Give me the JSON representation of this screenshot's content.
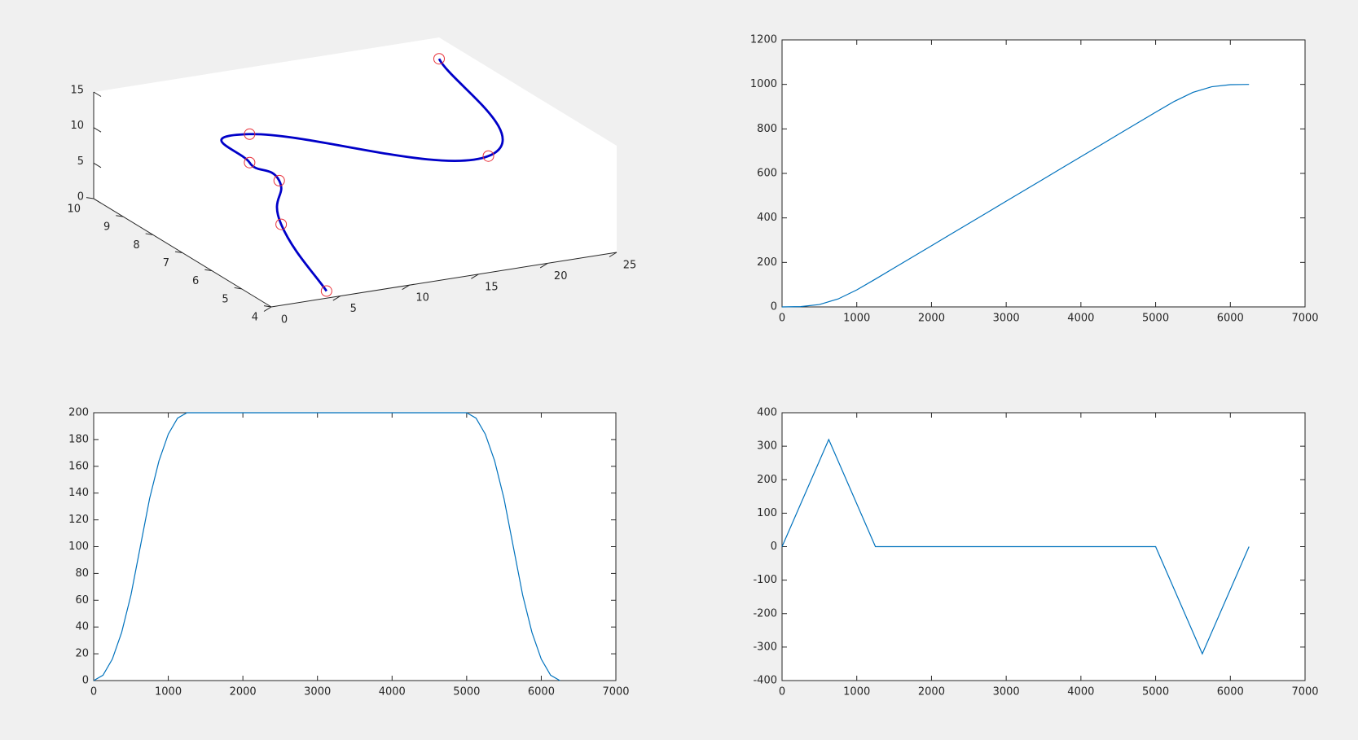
{
  "chart_data": [
    {
      "type": "line3d",
      "x": [
        4,
        5,
        7,
        7,
        7,
        20,
        25
      ],
      "y": [
        4,
        6,
        7,
        8,
        8,
        6,
        10
      ],
      "z": [
        1,
        5,
        8,
        8,
        12,
        10,
        12
      ],
      "line_color": "#0000c8",
      "marker_color": "#e8303a",
      "xlim": [
        0,
        25
      ],
      "ylim": [
        4,
        10
      ],
      "zlim": [
        0,
        15
      ],
      "xticks": [
        0,
        5,
        10,
        15,
        20,
        25
      ],
      "yticks": [
        4,
        5,
        6,
        7,
        8,
        9,
        10
      ],
      "zticks": [
        0,
        5,
        10,
        15
      ]
    },
    {
      "type": "line",
      "x": [
        0,
        250,
        500,
        750,
        1000,
        1250,
        1500,
        1750,
        2000,
        2250,
        2500,
        2750,
        3000,
        3250,
        3500,
        3750,
        4000,
        4250,
        4500,
        4750,
        5000,
        5250,
        5500,
        5750,
        6000,
        6250
      ],
      "values": [
        0,
        1.33,
        10.67,
        35.67,
        76.33,
        125,
        175,
        225,
        275,
        325,
        375,
        425,
        475,
        525,
        575,
        625,
        675,
        725,
        775,
        825,
        875,
        923.67,
        964.33,
        989.33,
        998.67,
        1000
      ],
      "color": "#0072bd",
      "xlim": [
        0,
        7000
      ],
      "ylim": [
        0,
        1200
      ],
      "xticks": [
        0,
        1000,
        2000,
        3000,
        4000,
        5000,
        6000,
        7000
      ],
      "yticks": [
        0,
        200,
        400,
        600,
        800,
        1000,
        1200
      ]
    },
    {
      "type": "line",
      "x": [
        0,
        125,
        250,
        375,
        500,
        625,
        750,
        875,
        1000,
        1125,
        1250,
        5000,
        5125,
        5250,
        5375,
        5500,
        5625,
        5750,
        5875,
        6000,
        6125,
        6250
      ],
      "values": [
        0,
        4,
        16,
        36,
        64,
        100,
        136,
        164,
        184,
        196,
        200,
        200,
        196,
        184,
        164,
        136,
        100,
        64,
        36,
        16,
        4,
        0
      ],
      "color": "#0072bd",
      "xlim": [
        0,
        7000
      ],
      "ylim": [
        0,
        200
      ],
      "xticks": [
        0,
        1000,
        2000,
        3000,
        4000,
        5000,
        6000,
        7000
      ],
      "yticks": [
        0,
        20,
        40,
        60,
        80,
        100,
        120,
        140,
        160,
        180,
        200
      ]
    },
    {
      "type": "line",
      "x": [
        0,
        625,
        1250,
        5000,
        5625,
        6250
      ],
      "values": [
        0,
        320,
        0,
        0,
        -320,
        0
      ],
      "color": "#0072bd",
      "xlim": [
        0,
        7000
      ],
      "ylim": [
        -400,
        400
      ],
      "xticks": [
        0,
        1000,
        2000,
        3000,
        4000,
        5000,
        6000,
        7000
      ],
      "yticks": [
        -400,
        -300,
        -200,
        -100,
        0,
        100,
        200,
        300,
        400
      ]
    }
  ]
}
